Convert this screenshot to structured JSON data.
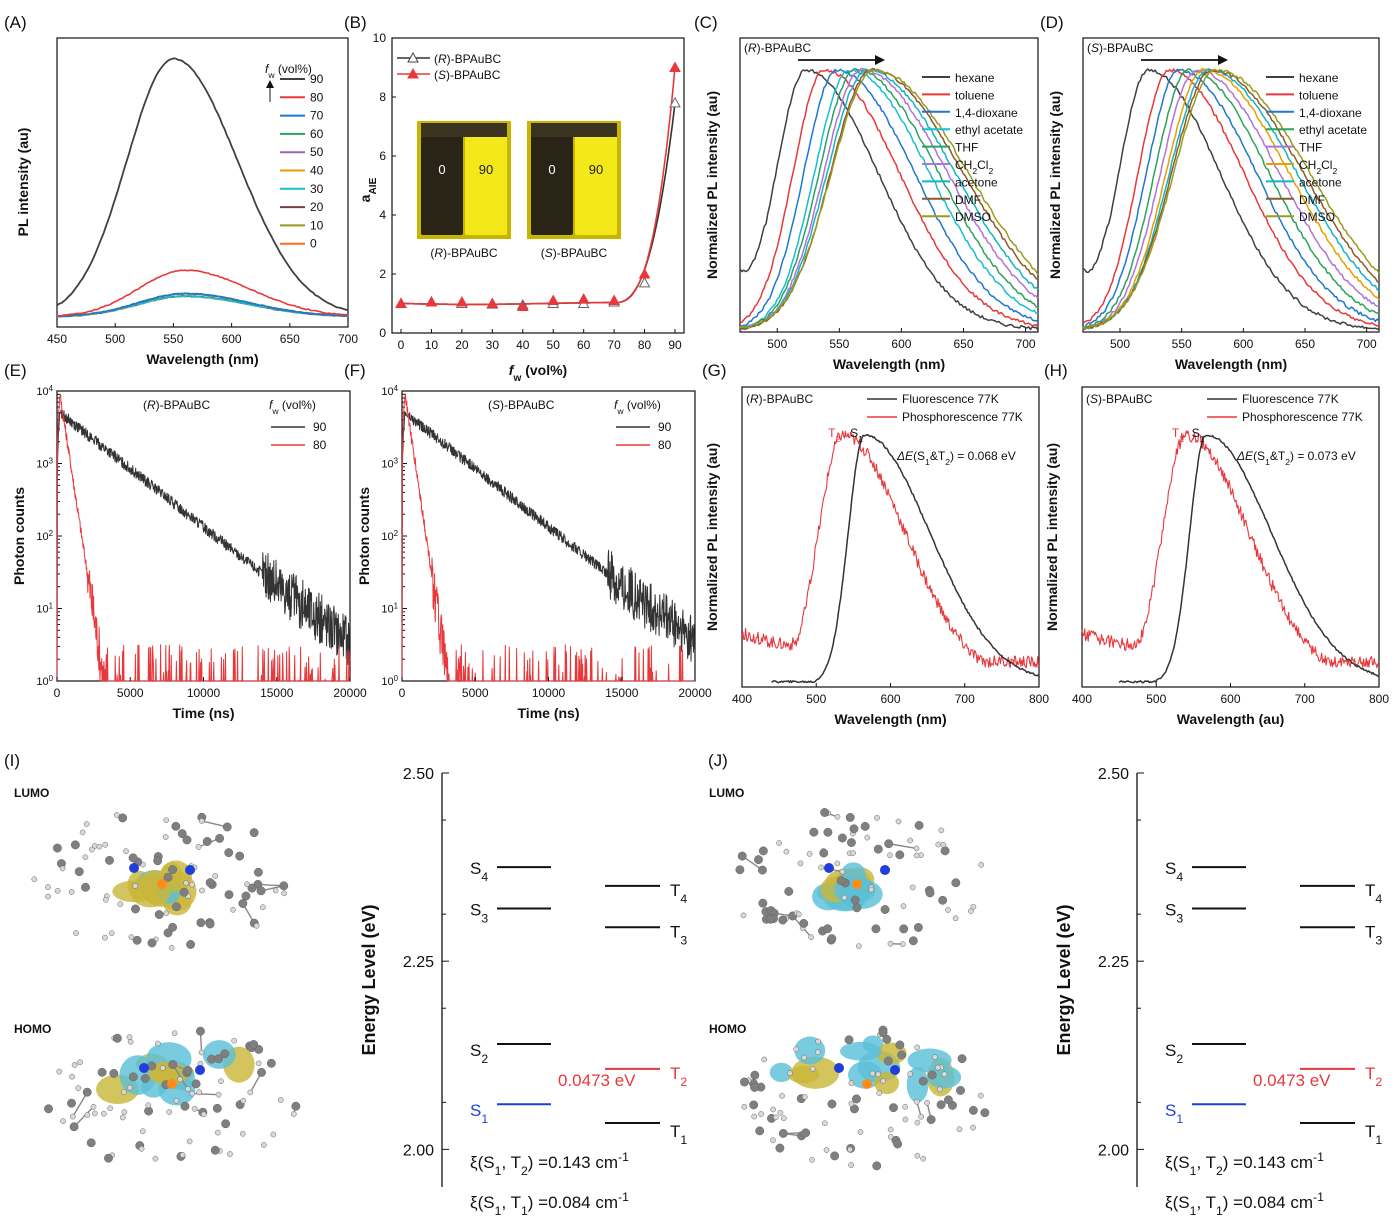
{
  "colors": {
    "water_90": "#404040",
    "water_80": "#e8383b",
    "water_70": "#1f77d4",
    "water_60": "#2ca25f",
    "water_50": "#9467bd",
    "water_40": "#e69f00",
    "water_30": "#17becf",
    "water_20": "#7b3f3f",
    "water_10": "#9a9a20",
    "water_0": "#ff6a1a",
    "hexane": "#404040",
    "toluene": "#e8383b",
    "dioxane": "#1f77d4",
    "ethyl_acetate": "#17becf",
    "thf": "#2ca25f",
    "ch2cl2": "#b073d9",
    "acetone": "#12b5c8",
    "dmf": "#8b5a2b",
    "dmso": "#9a9a20",
    "black": "#333333",
    "red": "#e8383b",
    "blue": "#1f3fd8",
    "vial_dark": "#2a2416",
    "vial_yellow": "#f2e81a",
    "vial_back": "#c9b400"
  },
  "panels": {
    "A": {
      "tag": "(A)"
    },
    "B": {
      "tag": "(B)"
    },
    "C": {
      "tag": "(C)"
    },
    "D": {
      "tag": "(D)"
    },
    "E": {
      "tag": "(E)"
    },
    "F": {
      "tag": "(F)"
    },
    "G": {
      "tag": "(G)"
    },
    "H": {
      "tag": "(H)"
    },
    "I": {
      "tag": "(I)",
      "lumo": "LUMO",
      "homo": "HOMO"
    },
    "J": {
      "tag": "(J)",
      "lumo": "LUMO",
      "homo": "HOMO"
    }
  },
  "chart_data": [
    {
      "id": "A",
      "type": "line",
      "xlabel": "Wavelength (nm)",
      "ylabel": "PL intensity (au)",
      "xlim": [
        450,
        700
      ],
      "xticks": [
        450,
        500,
        550,
        600,
        650,
        700
      ],
      "legend_title": "f",
      "legend_sub": "w",
      "legend_unit": " (vol%)",
      "series": [
        {
          "name": "90",
          "peak": 550,
          "amp": 1.0,
          "color_key": "water_90"
        },
        {
          "name": "80",
          "peak": 560,
          "amp": 0.18,
          "color_key": "water_80"
        },
        {
          "name": "70",
          "peak": 560,
          "amp": 0.09,
          "color_key": "water_70"
        },
        {
          "name": "60",
          "peak": 560,
          "amp": 0.09,
          "color_key": "water_60"
        },
        {
          "name": "50",
          "peak": 560,
          "amp": 0.09,
          "color_key": "water_50"
        },
        {
          "name": "40",
          "peak": 560,
          "amp": 0.09,
          "color_key": "water_40"
        },
        {
          "name": "30",
          "peak": 560,
          "amp": 0.08,
          "color_key": "water_30"
        },
        {
          "name": "20",
          "peak": 560,
          "amp": 0.08,
          "color_key": "water_20"
        },
        {
          "name": "10",
          "peak": 560,
          "amp": 0.08,
          "color_key": "water_10"
        },
        {
          "name": "0",
          "peak": 560,
          "amp": 0.08,
          "color_key": "water_0"
        }
      ]
    },
    {
      "id": "B",
      "type": "line",
      "xlabel": "f",
      "xlabel_sub": "w",
      "xlabel_unit": " (vol%)",
      "ylabel": "a",
      "ylabel_sub": "AIE",
      "xlim": [
        0,
        90
      ],
      "ylim": [
        0,
        10
      ],
      "xticks": [
        0,
        10,
        20,
        30,
        40,
        50,
        60,
        70,
        80,
        90
      ],
      "yticks": [
        0,
        2,
        4,
        6,
        8,
        10
      ],
      "x": [
        0,
        10,
        20,
        30,
        40,
        50,
        60,
        70,
        80,
        90
      ],
      "series": [
        {
          "name": "(R)-BPAuBC",
          "values": [
            1.0,
            1.05,
            1.0,
            0.98,
            0.95,
            1.0,
            1.0,
            1.05,
            1.7,
            7.8
          ],
          "color_key": "black",
          "marker": "open-triangle"
        },
        {
          "name": "(S)-BPAuBC",
          "values": [
            1.0,
            1.05,
            1.05,
            1.0,
            0.9,
            1.1,
            1.15,
            1.1,
            2.0,
            9.0
          ],
          "color_key": "red",
          "marker": "filled-triangle"
        }
      ],
      "vials": [
        {
          "caption": "(R)-BPAuBC",
          "left": "0",
          "right": "90"
        },
        {
          "caption": "(S)-BPAuBC",
          "left": "0",
          "right": "90"
        }
      ]
    },
    {
      "id": "C",
      "type": "line",
      "title": "(R)-BPAuBC",
      "xlabel": "Wavelength (nm)",
      "ylabel": "Normalized PL intensity (au)",
      "xlim": [
        470,
        710
      ],
      "xticks": [
        500,
        550,
        600,
        650,
        700
      ],
      "series": [
        {
          "name": "hexane",
          "peak": 523,
          "color_key": "hexane"
        },
        {
          "name": "toluene",
          "peak": 538,
          "color_key": "toluene"
        },
        {
          "name": "1,4-dioxane",
          "peak": 548,
          "color_key": "dioxane"
        },
        {
          "name": "ethyl acetate",
          "peak": 558,
          "color_key": "ethyl_acetate"
        },
        {
          "name": "THF",
          "peak": 563,
          "color_key": "thf"
        },
        {
          "name": "CH2Cl2",
          "peak": 568,
          "color_key": "ch2cl2"
        },
        {
          "name": "acetone",
          "peak": 572,
          "color_key": "acetone"
        },
        {
          "name": "DMF",
          "peak": 576,
          "color_key": "dmf"
        },
        {
          "name": "DMSO",
          "peak": 578,
          "color_key": "dmso"
        }
      ]
    },
    {
      "id": "D",
      "type": "line",
      "title": "(S)-BPAuBC",
      "xlabel": "Wavelength (nm)",
      "ylabel": "Normalized PL intensity (au)",
      "xlim": [
        470,
        710
      ],
      "xticks": [
        500,
        550,
        600,
        650,
        700
      ],
      "series": [
        {
          "name": "hexane",
          "peak": 523,
          "color_key": "hexane"
        },
        {
          "name": "toluene",
          "peak": 540,
          "color_key": "toluene"
        },
        {
          "name": "1,4-dioxane",
          "peak": 548,
          "color_key": "dioxane"
        },
        {
          "name": "ethyl acetate",
          "peak": 556,
          "color_key": "thf"
        },
        {
          "name": "THF",
          "peak": 562,
          "color_key": "ch2cl2"
        },
        {
          "name": "CH2Cl2",
          "peak": 568,
          "color_key": "water_40"
        },
        {
          "name": "acetone",
          "peak": 572,
          "color_key": "acetone"
        },
        {
          "name": "DMF",
          "peak": 575,
          "color_key": "dmf"
        },
        {
          "name": "DMSO",
          "peak": 578,
          "color_key": "dmso"
        }
      ]
    },
    {
      "id": "E",
      "type": "line",
      "title": "(R)-BPAuBC",
      "xlabel": "Time (ns)",
      "ylabel": "Photon counts",
      "yscale": "log",
      "xlim": [
        0,
        20000
      ],
      "ylim": [
        1,
        10000
      ],
      "xticks": [
        0,
        5000,
        10000,
        15000,
        20000
      ],
      "legend_title": "f",
      "legend_sub": "w",
      "legend_unit": " (vol%)",
      "series": [
        {
          "name": "90",
          "tau": 2700,
          "color_key": "black"
        },
        {
          "name": "80",
          "tau": 330,
          "color_key": "red"
        }
      ]
    },
    {
      "id": "F",
      "type": "line",
      "title": "(S)-BPAuBC",
      "xlabel": "Time (ns)",
      "ylabel": "Photon counts",
      "yscale": "log",
      "xlim": [
        0,
        20000
      ],
      "ylim": [
        1,
        10000
      ],
      "xticks": [
        0,
        5000,
        10000,
        15000,
        20000
      ],
      "legend_title": "f",
      "legend_sub": "w",
      "legend_unit": " (vol%)",
      "series": [
        {
          "name": "90",
          "tau": 2700,
          "color_key": "black"
        },
        {
          "name": "80",
          "tau": 320,
          "color_key": "red"
        }
      ]
    },
    {
      "id": "G",
      "type": "line",
      "title": "(R)-BPAuBC",
      "xlabel": "Wavelength (nm)",
      "ylabel": "Normalized PL intensity (au)",
      "xlim": [
        400,
        800
      ],
      "xticks": [
        400,
        500,
        600,
        700,
        800
      ],
      "series": [
        {
          "name": "Fluorescence 77K",
          "peak": 565,
          "color_key": "black"
        },
        {
          "name": "Phosphorescence 77K",
          "peak": 535,
          "color_key": "red"
        }
      ],
      "annotation": {
        "t2": "T",
        "t2_sub": "2",
        "s1": "S",
        "s1_sub": "1",
        "de": "ΔE(S",
        "de_mid": "&T",
        "de_end": ") = 0.068 eV"
      }
    },
    {
      "id": "H",
      "type": "line",
      "title": "(S)-BPAuBC",
      "xlabel": "Wavelength (au)",
      "ylabel": "Normalized PL intensity (au)",
      "xlim": [
        400,
        800
      ],
      "xticks": [
        400,
        500,
        600,
        700,
        800
      ],
      "series": [
        {
          "name": "Fluorescence 77K",
          "peak": 567,
          "color_key": "black"
        },
        {
          "name": "Phosphorescence 77K",
          "peak": 540,
          "color_key": "red"
        }
      ],
      "annotation": {
        "t2": "T",
        "t2_sub": "2",
        "s1": "S",
        "s1_sub": "1",
        "de": "ΔE(S",
        "de_mid": "&T",
        "de_end": ") = 0.073 eV"
      }
    },
    {
      "id": "I",
      "type": "energy-level",
      "ylabel": "Energy Level (eV)",
      "ylim": [
        1.95,
        2.5
      ],
      "yticks": [
        "2.00",
        "2.25",
        "2.50"
      ],
      "singlets": [
        {
          "label": "S",
          "sub": "4",
          "e": 2.375
        },
        {
          "label": "S",
          "sub": "3",
          "e": 2.32
        },
        {
          "label": "S",
          "sub": "2",
          "e": 2.14
        },
        {
          "label": "S",
          "sub": "1",
          "e": 2.06
        }
      ],
      "triplets": [
        {
          "label": "T",
          "sub": "4",
          "e": 2.35
        },
        {
          "label": "T",
          "sub": "3",
          "e": 2.295
        },
        {
          "label": "T",
          "sub": "2",
          "e": 2.107
        },
        {
          "label": "T",
          "sub": "1",
          "e": 2.035
        }
      ],
      "gap": "0.0473 eV",
      "soc": [
        {
          "text": "ξ(S",
          "mid": ", T",
          "end": ") =0.143 cm",
          "s": "1",
          "t": "2"
        },
        {
          "text": "ξ(S",
          "mid": ", T",
          "end": ") =0.084 cm",
          "s": "1",
          "t": "1"
        }
      ]
    },
    {
      "id": "J",
      "type": "energy-level",
      "ylabel": "Energy Level (eV)",
      "ylim": [
        1.95,
        2.5
      ],
      "yticks": [
        "2.00",
        "2.25",
        "2.50"
      ],
      "singlets": [
        {
          "label": "S",
          "sub": "4",
          "e": 2.375
        },
        {
          "label": "S",
          "sub": "3",
          "e": 2.32
        },
        {
          "label": "S",
          "sub": "2",
          "e": 2.14
        },
        {
          "label": "S",
          "sub": "1",
          "e": 2.06
        }
      ],
      "triplets": [
        {
          "label": "T",
          "sub": "4",
          "e": 2.35
        },
        {
          "label": "T",
          "sub": "3",
          "e": 2.295
        },
        {
          "label": "T",
          "sub": "2",
          "e": 2.107
        },
        {
          "label": "T",
          "sub": "1",
          "e": 2.035
        }
      ],
      "gap": "0.0473 eV",
      "soc": [
        {
          "text": "ξ(S",
          "mid": ", T",
          "end": ") =0.143 cm",
          "s": "1",
          "t": "2"
        },
        {
          "text": "ξ(S",
          "mid": ", T",
          "end": ") =0.084 cm",
          "s": "1",
          "t": "1"
        }
      ]
    }
  ]
}
